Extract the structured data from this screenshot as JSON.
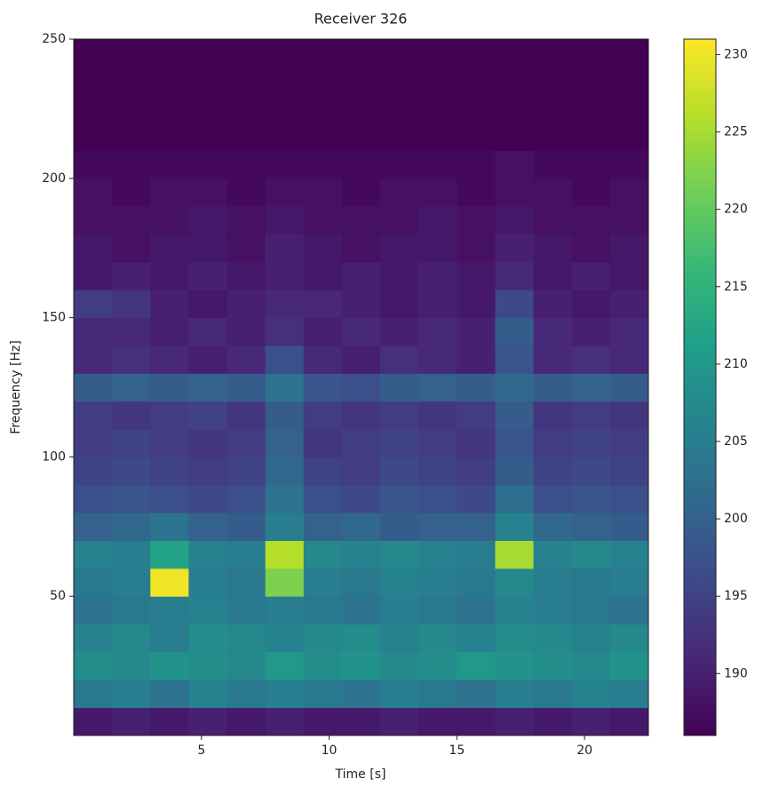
{
  "chart_data": {
    "type": "heatmap",
    "title": "Receiver 326",
    "x_label": "Time [s]",
    "y_label": "Frequency [Hz]",
    "colormap": "viridis",
    "xlim": [
      0,
      22.5
    ],
    "ylim": [
      0,
      250
    ],
    "clim": [
      186,
      231
    ],
    "xticks": [
      5,
      10,
      15,
      20
    ],
    "yticks": [
      50,
      100,
      150,
      200,
      250
    ],
    "cticks": [
      190,
      195,
      200,
      205,
      210,
      215,
      220,
      225,
      230
    ],
    "x_edges": [
      0,
      1.5,
      3,
      4.5,
      6,
      7.5,
      9,
      10.5,
      12,
      13.5,
      15,
      16.5,
      18,
      19.5,
      21,
      22.5
    ],
    "y_edges": [
      0,
      10,
      20,
      30,
      40,
      50,
      60,
      70,
      80,
      90,
      100,
      110,
      120,
      130,
      140,
      150,
      160,
      170,
      180,
      190,
      200,
      210,
      220,
      230,
      240,
      250
    ],
    "z": [
      [
        189,
        190,
        189,
        190,
        189,
        190,
        189,
        189,
        190,
        189,
        189,
        190,
        189,
        190,
        189
      ],
      [
        204,
        205,
        203,
        206,
        204,
        205,
        204,
        203,
        205,
        204,
        203,
        205,
        204,
        206,
        205
      ],
      [
        208,
        207,
        209,
        208,
        207,
        210,
        208,
        209,
        207,
        208,
        210,
        209,
        208,
        207,
        209
      ],
      [
        206,
        207,
        205,
        208,
        207,
        206,
        207,
        208,
        206,
        207,
        206,
        208,
        207,
        206,
        207
      ],
      [
        203,
        204,
        205,
        206,
        204,
        205,
        204,
        203,
        205,
        204,
        203,
        206,
        205,
        204,
        203
      ],
      [
        204,
        205,
        230,
        205,
        204,
        222,
        205,
        204,
        206,
        205,
        204,
        207,
        205,
        204,
        205
      ],
      [
        206,
        205,
        212,
        206,
        205,
        226,
        207,
        206,
        207,
        206,
        205,
        225,
        206,
        207,
        206
      ],
      [
        200,
        201,
        203,
        200,
        199,
        205,
        200,
        201,
        199,
        200,
        200,
        206,
        201,
        200,
        199
      ],
      [
        197,
        198,
        197,
        196,
        197,
        203,
        197,
        196,
        198,
        197,
        196,
        202,
        197,
        198,
        197
      ],
      [
        195,
        196,
        195,
        194,
        195,
        201,
        195,
        194,
        196,
        195,
        194,
        199,
        195,
        196,
        195
      ],
      [
        194,
        195,
        194,
        193,
        194,
        200,
        193,
        194,
        195,
        194,
        193,
        198,
        194,
        195,
        194
      ],
      [
        194,
        193,
        194,
        195,
        193,
        199,
        194,
        193,
        194,
        193,
        194,
        199,
        193,
        194,
        193
      ],
      [
        199,
        200,
        199,
        200,
        199,
        203,
        198,
        197,
        199,
        200,
        199,
        201,
        199,
        200,
        199
      ],
      [
        191,
        192,
        191,
        190,
        191,
        197,
        191,
        190,
        192,
        191,
        190,
        198,
        191,
        192,
        191
      ],
      [
        191,
        191,
        190,
        191,
        190,
        192,
        190,
        191,
        190,
        191,
        190,
        199,
        191,
        190,
        191
      ],
      [
        194,
        193,
        190,
        189,
        190,
        191,
        191,
        190,
        189,
        190,
        189,
        196,
        190,
        189,
        190
      ],
      [
        189,
        190,
        189,
        190,
        189,
        190,
        189,
        190,
        189,
        190,
        189,
        191,
        189,
        190,
        189
      ],
      [
        189,
        188,
        189,
        189,
        188,
        190,
        189,
        188,
        189,
        189,
        188,
        190,
        189,
        188,
        189
      ],
      [
        188,
        188,
        188,
        189,
        188,
        189,
        188,
        188,
        188,
        189,
        188,
        189,
        188,
        188,
        188
      ],
      [
        188,
        187,
        188,
        188,
        187,
        188,
        188,
        187,
        188,
        188,
        187,
        188,
        188,
        187,
        188
      ],
      [
        187,
        187,
        187,
        187,
        187,
        187,
        187,
        187,
        187,
        187,
        187,
        188,
        187,
        187,
        187
      ],
      [
        186,
        186,
        186,
        186,
        186,
        186,
        186,
        186,
        186,
        186,
        186,
        186,
        186,
        186,
        186
      ],
      [
        186,
        186,
        186,
        186,
        186,
        186,
        186,
        186,
        186,
        186,
        186,
        186,
        186,
        186,
        186
      ],
      [
        186,
        186,
        186,
        186,
        186,
        186,
        186,
        186,
        186,
        186,
        186,
        186,
        186,
        186,
        186
      ],
      [
        186,
        186,
        186,
        186,
        186,
        186,
        186,
        186,
        186,
        186,
        186,
        186,
        186,
        186,
        186
      ]
    ]
  }
}
